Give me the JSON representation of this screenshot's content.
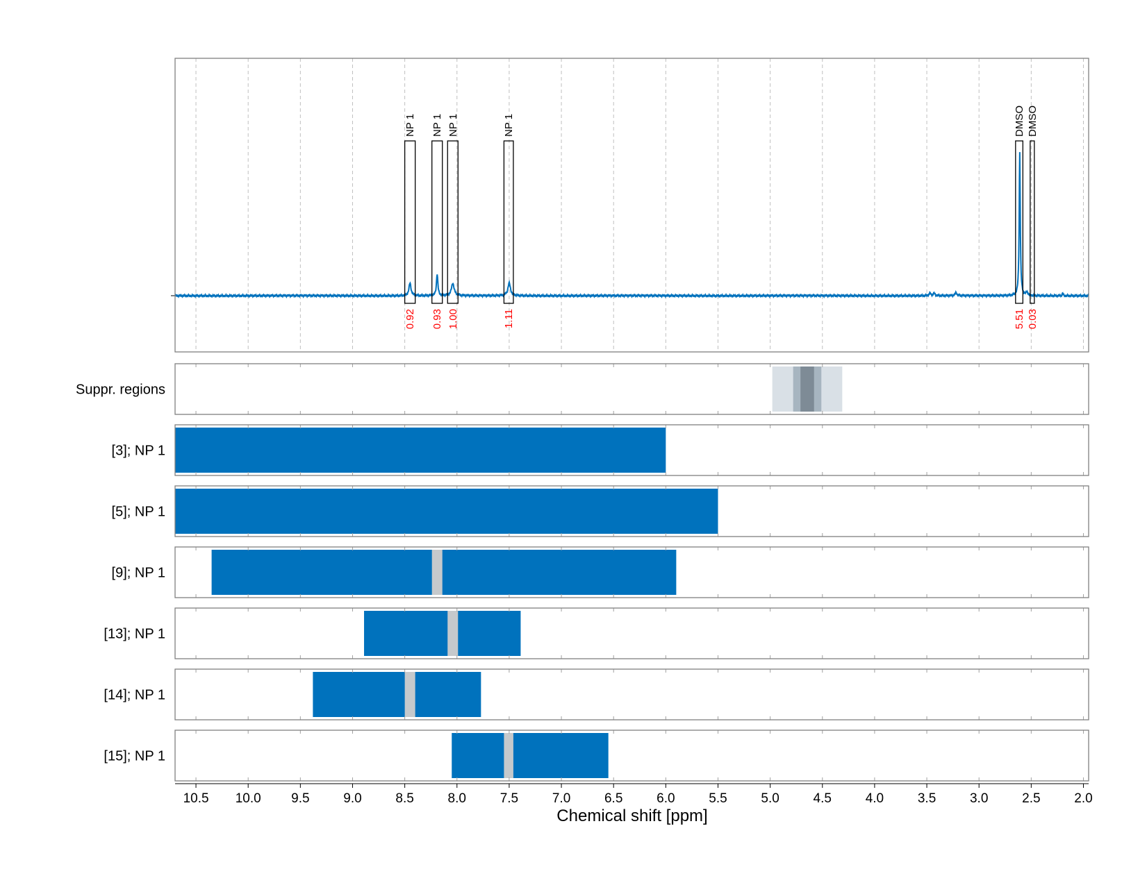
{
  "chart_data": {
    "type": "nmr_spectrum_with_range_tracks",
    "xlabel": "Chemical shift [ppm]",
    "xlim": [
      10.7,
      1.95
    ],
    "x_ticks": [
      10.5,
      10.0,
      9.5,
      9.0,
      8.5,
      8.0,
      7.5,
      7.0,
      6.5,
      6.0,
      5.5,
      5.0,
      4.5,
      4.0,
      3.5,
      3.0,
      2.5,
      2.0
    ],
    "x_tick_labels": [
      "10.5",
      "10.0",
      "9.5",
      "9.0",
      "8.5",
      "8.0",
      "7.5",
      "7.0",
      "6.5",
      "6.0",
      "5.5",
      "5.0",
      "4.5",
      "4.0",
      "3.5",
      "3.0",
      "2.5",
      "2.0"
    ],
    "grid": true,
    "spectrum": {
      "color": "#0072BD",
      "baseline": 0.0,
      "ylim": [
        -0.45,
        1.0
      ],
      "peaks": [
        {
          "ppm": 8.45,
          "height": 0.08,
          "width": 0.012
        },
        {
          "ppm": 8.19,
          "height": 0.14,
          "width": 0.008
        },
        {
          "ppm": 8.04,
          "height": 0.08,
          "width": 0.015
        },
        {
          "ppm": 7.5,
          "height": 0.08,
          "width": 0.015
        },
        {
          "ppm": 3.47,
          "height": 0.015,
          "width": 0.01
        },
        {
          "ppm": 3.43,
          "height": 0.015,
          "width": 0.01
        },
        {
          "ppm": 3.22,
          "height": 0.02,
          "width": 0.01
        },
        {
          "ppm": 2.61,
          "height": 0.92,
          "width": 0.006
        },
        {
          "ppm": 2.54,
          "height": 0.02,
          "width": 0.01
        },
        {
          "ppm": 2.2,
          "height": 0.015,
          "width": 0.005
        }
      ]
    },
    "integrals": [
      {
        "label": "NP 1",
        "from": 8.5,
        "to": 8.4,
        "value": "0.92"
      },
      {
        "label": "NP 1",
        "from": 8.24,
        "to": 8.14,
        "value": "0.93"
      },
      {
        "label": "NP 1",
        "from": 8.09,
        "to": 7.99,
        "value": "1.00"
      },
      {
        "label": "NP 1",
        "from": 7.55,
        "to": 7.46,
        "value": "1.11"
      },
      {
        "label": "DMSO",
        "from": 2.65,
        "to": 2.58,
        "value": "5.51"
      },
      {
        "label": "DMSO",
        "from": 2.51,
        "to": 2.47,
        "value": "0.03"
      }
    ],
    "suppression_track": {
      "label": "Suppr. regions",
      "regions": [
        {
          "from": 4.98,
          "to": 4.31,
          "color": "#d9e0e6"
        },
        {
          "from": 4.78,
          "to": 4.51,
          "color": "#a7b5c0"
        },
        {
          "from": 4.71,
          "to": 4.58,
          "color": "#7e8b96"
        }
      ]
    },
    "range_tracks": [
      {
        "label": "[3]; NP 1",
        "ranges": [
          [
            10.7,
            6.0
          ]
        ],
        "gaps": []
      },
      {
        "label": "[5]; NP 1",
        "ranges": [
          [
            10.7,
            5.5
          ]
        ],
        "gaps": []
      },
      {
        "label": "[9]; NP 1",
        "ranges": [
          [
            10.35,
            5.9
          ]
        ],
        "gaps": [
          [
            8.24,
            8.14
          ]
        ]
      },
      {
        "label": "[13]; NP 1",
        "ranges": [
          [
            8.89,
            7.39
          ]
        ],
        "gaps": [
          [
            8.09,
            7.99
          ]
        ]
      },
      {
        "label": "[14]; NP 1",
        "ranges": [
          [
            9.38,
            7.77
          ]
        ],
        "gaps": [
          [
            8.5,
            8.4
          ]
        ]
      },
      {
        "label": "[15]; NP 1",
        "ranges": [
          [
            8.05,
            6.55
          ]
        ],
        "gaps": [
          [
            7.55,
            7.46
          ]
        ]
      }
    ],
    "colors": {
      "range_fill": "#0072BD",
      "gap_fill": "#c5c9cc",
      "integral_value": "#ff0000",
      "grid": "#bfbfbf",
      "frame": "#808080"
    }
  }
}
